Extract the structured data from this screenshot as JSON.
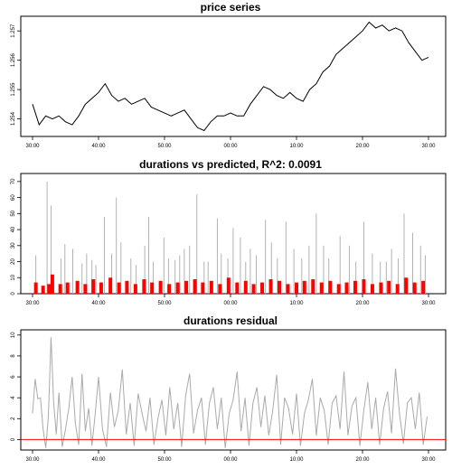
{
  "chart_data": [
    {
      "type": "line",
      "title": "price series",
      "xlabel": "",
      "ylabel": "",
      "x_tick_labels": [
        "30:00",
        "40:00",
        "50:00",
        "00:00",
        "10:00",
        "20:00",
        "30:00"
      ],
      "y_tick_labels": [
        "1.254",
        "1.255",
        "1.256",
        "1.257"
      ],
      "ylim": [
        1.2534,
        1.2575
      ],
      "grid": false,
      "series": [
        {
          "color": "#000000",
          "x": [
            0,
            1,
            2,
            3,
            4,
            5,
            6,
            7,
            8,
            9,
            10,
            11,
            12,
            13,
            14,
            15,
            16,
            17,
            18,
            19,
            20,
            21,
            22,
            23,
            24,
            25,
            26,
            27,
            28,
            29,
            30,
            31,
            32,
            33,
            34,
            35,
            36,
            37,
            38,
            39,
            40,
            41,
            42,
            43,
            44,
            45,
            46,
            47,
            48,
            49,
            50,
            51,
            52,
            53,
            54,
            55,
            56,
            57,
            58,
            59,
            60
          ],
          "values": [
            1.2545,
            1.2538,
            1.2541,
            1.254,
            1.2541,
            1.2539,
            1.2538,
            1.2541,
            1.2545,
            1.2547,
            1.2549,
            1.2552,
            1.2548,
            1.2546,
            1.2547,
            1.2545,
            1.2546,
            1.2547,
            1.2544,
            1.2543,
            1.2542,
            1.2541,
            1.2542,
            1.2543,
            1.254,
            1.2537,
            1.2536,
            1.2539,
            1.2541,
            1.2541,
            1.2542,
            1.2541,
            1.2541,
            1.2545,
            1.2548,
            1.2551,
            1.255,
            1.2548,
            1.2547,
            1.2549,
            1.2547,
            1.2546,
            1.255,
            1.2552,
            1.2556,
            1.2558,
            1.2562,
            1.2564,
            1.2566,
            1.2568,
            1.257,
            1.2573,
            1.2571,
            1.2572,
            1.257,
            1.2571,
            1.257,
            1.2566,
            1.2563,
            1.256,
            1.2561
          ]
        }
      ]
    },
    {
      "type": "bar",
      "title": "durations vs predicted, R^2: 0.0091",
      "xlabel": "",
      "ylabel": "",
      "x_tick_labels": [
        "30:00",
        "40:00",
        "50:00",
        "00:00",
        "10:00",
        "20:00",
        "30:00"
      ],
      "y_tick_labels": [
        "0",
        "10",
        "20",
        "30",
        "40",
        "50",
        "60",
        "70"
      ],
      "ylim": [
        0,
        75
      ],
      "grid": false,
      "series": [
        {
          "color": "#aaaaaa",
          "x": [
            0.5,
            2.2,
            2.8,
            4.3,
            4.9,
            6.1,
            7.5,
            8.2,
            9.0,
            9.6,
            10.9,
            12.0,
            12.7,
            13.4,
            14.9,
            15.7,
            17.0,
            17.6,
            18.3,
            19.9,
            20.6,
            21.6,
            22.3,
            23.0,
            23.8,
            24.9,
            26.0,
            26.6,
            28.0,
            28.6,
            29.6,
            30.4,
            31.5,
            32.3,
            33.0,
            33.9,
            35.3,
            36.2,
            37.1,
            38.4,
            39.6,
            40.8,
            41.9,
            43.0,
            44.1,
            44.9,
            46.6,
            48.0,
            49.0,
            50.2,
            51.5,
            52.7,
            53.6,
            54.4,
            55.4,
            56.3,
            57.6,
            58.8,
            59.5
          ],
          "values": [
            24,
            70,
            55,
            22,
            31,
            28,
            19,
            25,
            21,
            18,
            48,
            25,
            60,
            32,
            22,
            18,
            30,
            48,
            20,
            35,
            22,
            21,
            24,
            28,
            30,
            62,
            20,
            20,
            47,
            25,
            22,
            41,
            35,
            20,
            28,
            24,
            46,
            32,
            22,
            45,
            28,
            22,
            30,
            50,
            30,
            22,
            36,
            30,
            20,
            45,
            25,
            20,
            20,
            28,
            22,
            50,
            38,
            30,
            24
          ]
        },
        {
          "color": "#ff0000",
          "x": [
            0.5,
            1.6,
            2.5,
            3.0,
            4.2,
            5.3,
            6.8,
            8.0,
            9.2,
            10.4,
            11.8,
            13.1,
            14.3,
            15.6,
            16.9,
            18.1,
            19.4,
            20.7,
            22.0,
            23.3,
            24.6,
            25.8,
            27.1,
            28.4,
            29.7,
            31.0,
            32.3,
            33.5,
            34.8,
            36.1,
            37.4,
            38.7,
            40.0,
            41.2,
            42.5,
            43.8,
            45.1,
            46.4,
            47.6,
            48.9,
            50.2,
            51.5,
            52.8,
            54.0,
            55.3,
            56.6,
            57.9,
            59.2
          ],
          "values": [
            7,
            5,
            6,
            12,
            6,
            7,
            8,
            6,
            9,
            7,
            10,
            7,
            8,
            6,
            9,
            7,
            8,
            6,
            7,
            8,
            9,
            7,
            8,
            6,
            10,
            7,
            8,
            6,
            7,
            9,
            8,
            6,
            7,
            8,
            9,
            7,
            8,
            6,
            7,
            8,
            9,
            6,
            7,
            8,
            6,
            10,
            7,
            8
          ]
        }
      ]
    },
    {
      "type": "line",
      "title": "durations residual",
      "xlabel": "",
      "ylabel": "",
      "x_tick_labels": [
        "30:00",
        "40:00",
        "50:00",
        "00:00",
        "10:00",
        "20:00",
        "30:00"
      ],
      "y_tick_labels": [
        "0",
        "2",
        "4",
        "6",
        "8",
        "10"
      ],
      "ylim": [
        -1,
        10.5
      ],
      "grid": false,
      "reference_line": {
        "y": 0,
        "color": "#ff0000"
      },
      "series": [
        {
          "color": "#aaaaaa",
          "x": [
            0.0,
            0.4,
            0.8,
            1.2,
            1.6,
            2.0,
            2.4,
            2.8,
            3.2,
            3.6,
            4.0,
            4.5,
            5.0,
            5.5,
            6.0,
            6.5,
            7.0,
            7.5,
            8.0,
            8.5,
            9.0,
            9.5,
            10.0,
            10.6,
            11.2,
            11.8,
            12.4,
            13.0,
            13.6,
            14.2,
            14.8,
            15.4,
            16.0,
            16.6,
            17.2,
            17.8,
            18.4,
            19.0,
            19.6,
            20.2,
            20.8,
            21.4,
            22.0,
            22.6,
            23.2,
            23.8,
            24.4,
            25.0,
            25.6,
            26.2,
            26.8,
            27.4,
            28.0,
            28.6,
            29.2,
            29.8,
            30.4,
            31.0,
            31.6,
            32.2,
            32.8,
            33.4,
            34.0,
            34.6,
            35.2,
            35.8,
            36.4,
            37.0,
            37.6,
            38.2,
            38.8,
            39.4,
            40.0,
            40.6,
            41.2,
            41.8,
            42.4,
            43.0,
            43.6,
            44.2,
            44.8,
            45.4,
            46.0,
            46.6,
            47.2,
            47.8,
            48.4,
            49.0,
            49.6,
            50.2,
            50.8,
            51.4,
            52.0,
            52.6,
            53.2,
            53.8,
            54.4,
            55.0,
            55.6,
            56.2,
            56.8,
            57.4,
            58.0,
            58.6,
            59.2,
            59.8
          ],
          "values": [
            2.5,
            5.8,
            3.9,
            4.0,
            1.0,
            -0.8,
            2.2,
            9.8,
            3.5,
            0.5,
            4.5,
            -0.7,
            1.0,
            3.0,
            6.0,
            1.5,
            -0.5,
            6.3,
            0.8,
            3.0,
            -0.6,
            2.5,
            6.0,
            1.0,
            -0.7,
            4.5,
            1.2,
            2.8,
            6.7,
            0.5,
            3.5,
            -0.6,
            4.4,
            2.5,
            0.8,
            4.0,
            -0.5,
            2.0,
            3.8,
            0.4,
            5.0,
            1.0,
            3.5,
            -0.7,
            4.2,
            6.3,
            0.6,
            2.8,
            4.0,
            -0.5,
            3.5,
            5.0,
            1.0,
            4.0,
            -0.8,
            2.5,
            3.8,
            6.5,
            0.8,
            4.0,
            -0.6,
            3.5,
            5.0,
            1.2,
            4.2,
            0.4,
            2.8,
            6.2,
            -0.5,
            4.0,
            3.0,
            0.5,
            4.4,
            -0.6,
            2.5,
            3.8,
            5.8,
            0.4,
            4.0,
            2.8,
            -0.5,
            3.5,
            4.2,
            1.0,
            6.5,
            0.4,
            3.2,
            4.0,
            -0.6,
            2.8,
            5.5,
            1.0,
            4.0,
            -0.5,
            3.0,
            4.6,
            0.6,
            6.8,
            2.5,
            -0.4,
            3.5,
            4.0,
            1.0,
            4.5,
            -0.5,
            2.2
          ]
        }
      ]
    }
  ]
}
